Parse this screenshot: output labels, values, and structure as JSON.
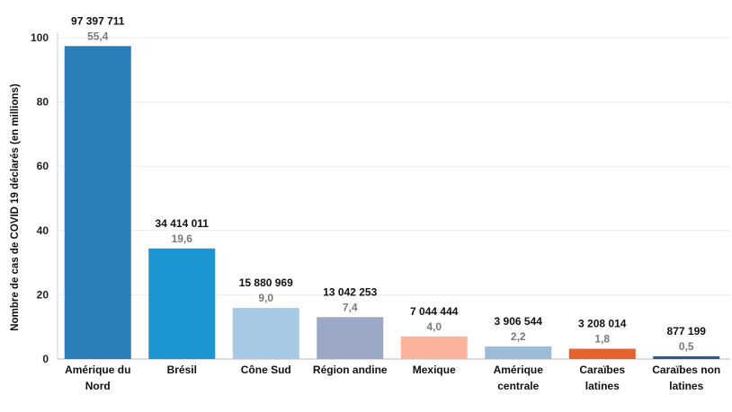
{
  "chart_data": {
    "type": "bar",
    "ylabel": "Nombre de cas de COVID 19 déclarés (en millions)",
    "ylim": [
      0,
      100
    ],
    "yticks": [
      0,
      20,
      40,
      60,
      80,
      100
    ],
    "grid": true,
    "categories": [
      [
        "Amérique du",
        "Nord"
      ],
      [
        "Brésil"
      ],
      [
        "Cône Sud"
      ],
      [
        "Région andine"
      ],
      [
        "Mexique"
      ],
      [
        "Amérique",
        "centrale"
      ],
      [
        "Caraïbes",
        "latines"
      ],
      [
        "Caraïbes non",
        "latines"
      ]
    ],
    "values": [
      97.397711,
      34.414011,
      15.880969,
      13.042253,
      7.044444,
      3.906544,
      3.208014,
      0.877199
    ],
    "count_labels": [
      "97 397 711",
      "34 414 011",
      "15 880 969",
      "13 042 253",
      "7 044 444",
      "3 906 544",
      "3 208 014",
      "877 199"
    ],
    "percent_labels": [
      "55,4",
      "19,6",
      "9,0",
      "7,4",
      "4,0",
      "2,2",
      "1,8",
      "0,5"
    ],
    "colors": [
      "#2a7fb8",
      "#1b96d3",
      "#a6c9e6",
      "#9aa8c6",
      "#fbb39a",
      "#9dbbd9",
      "#e5622d",
      "#255d92"
    ]
  }
}
